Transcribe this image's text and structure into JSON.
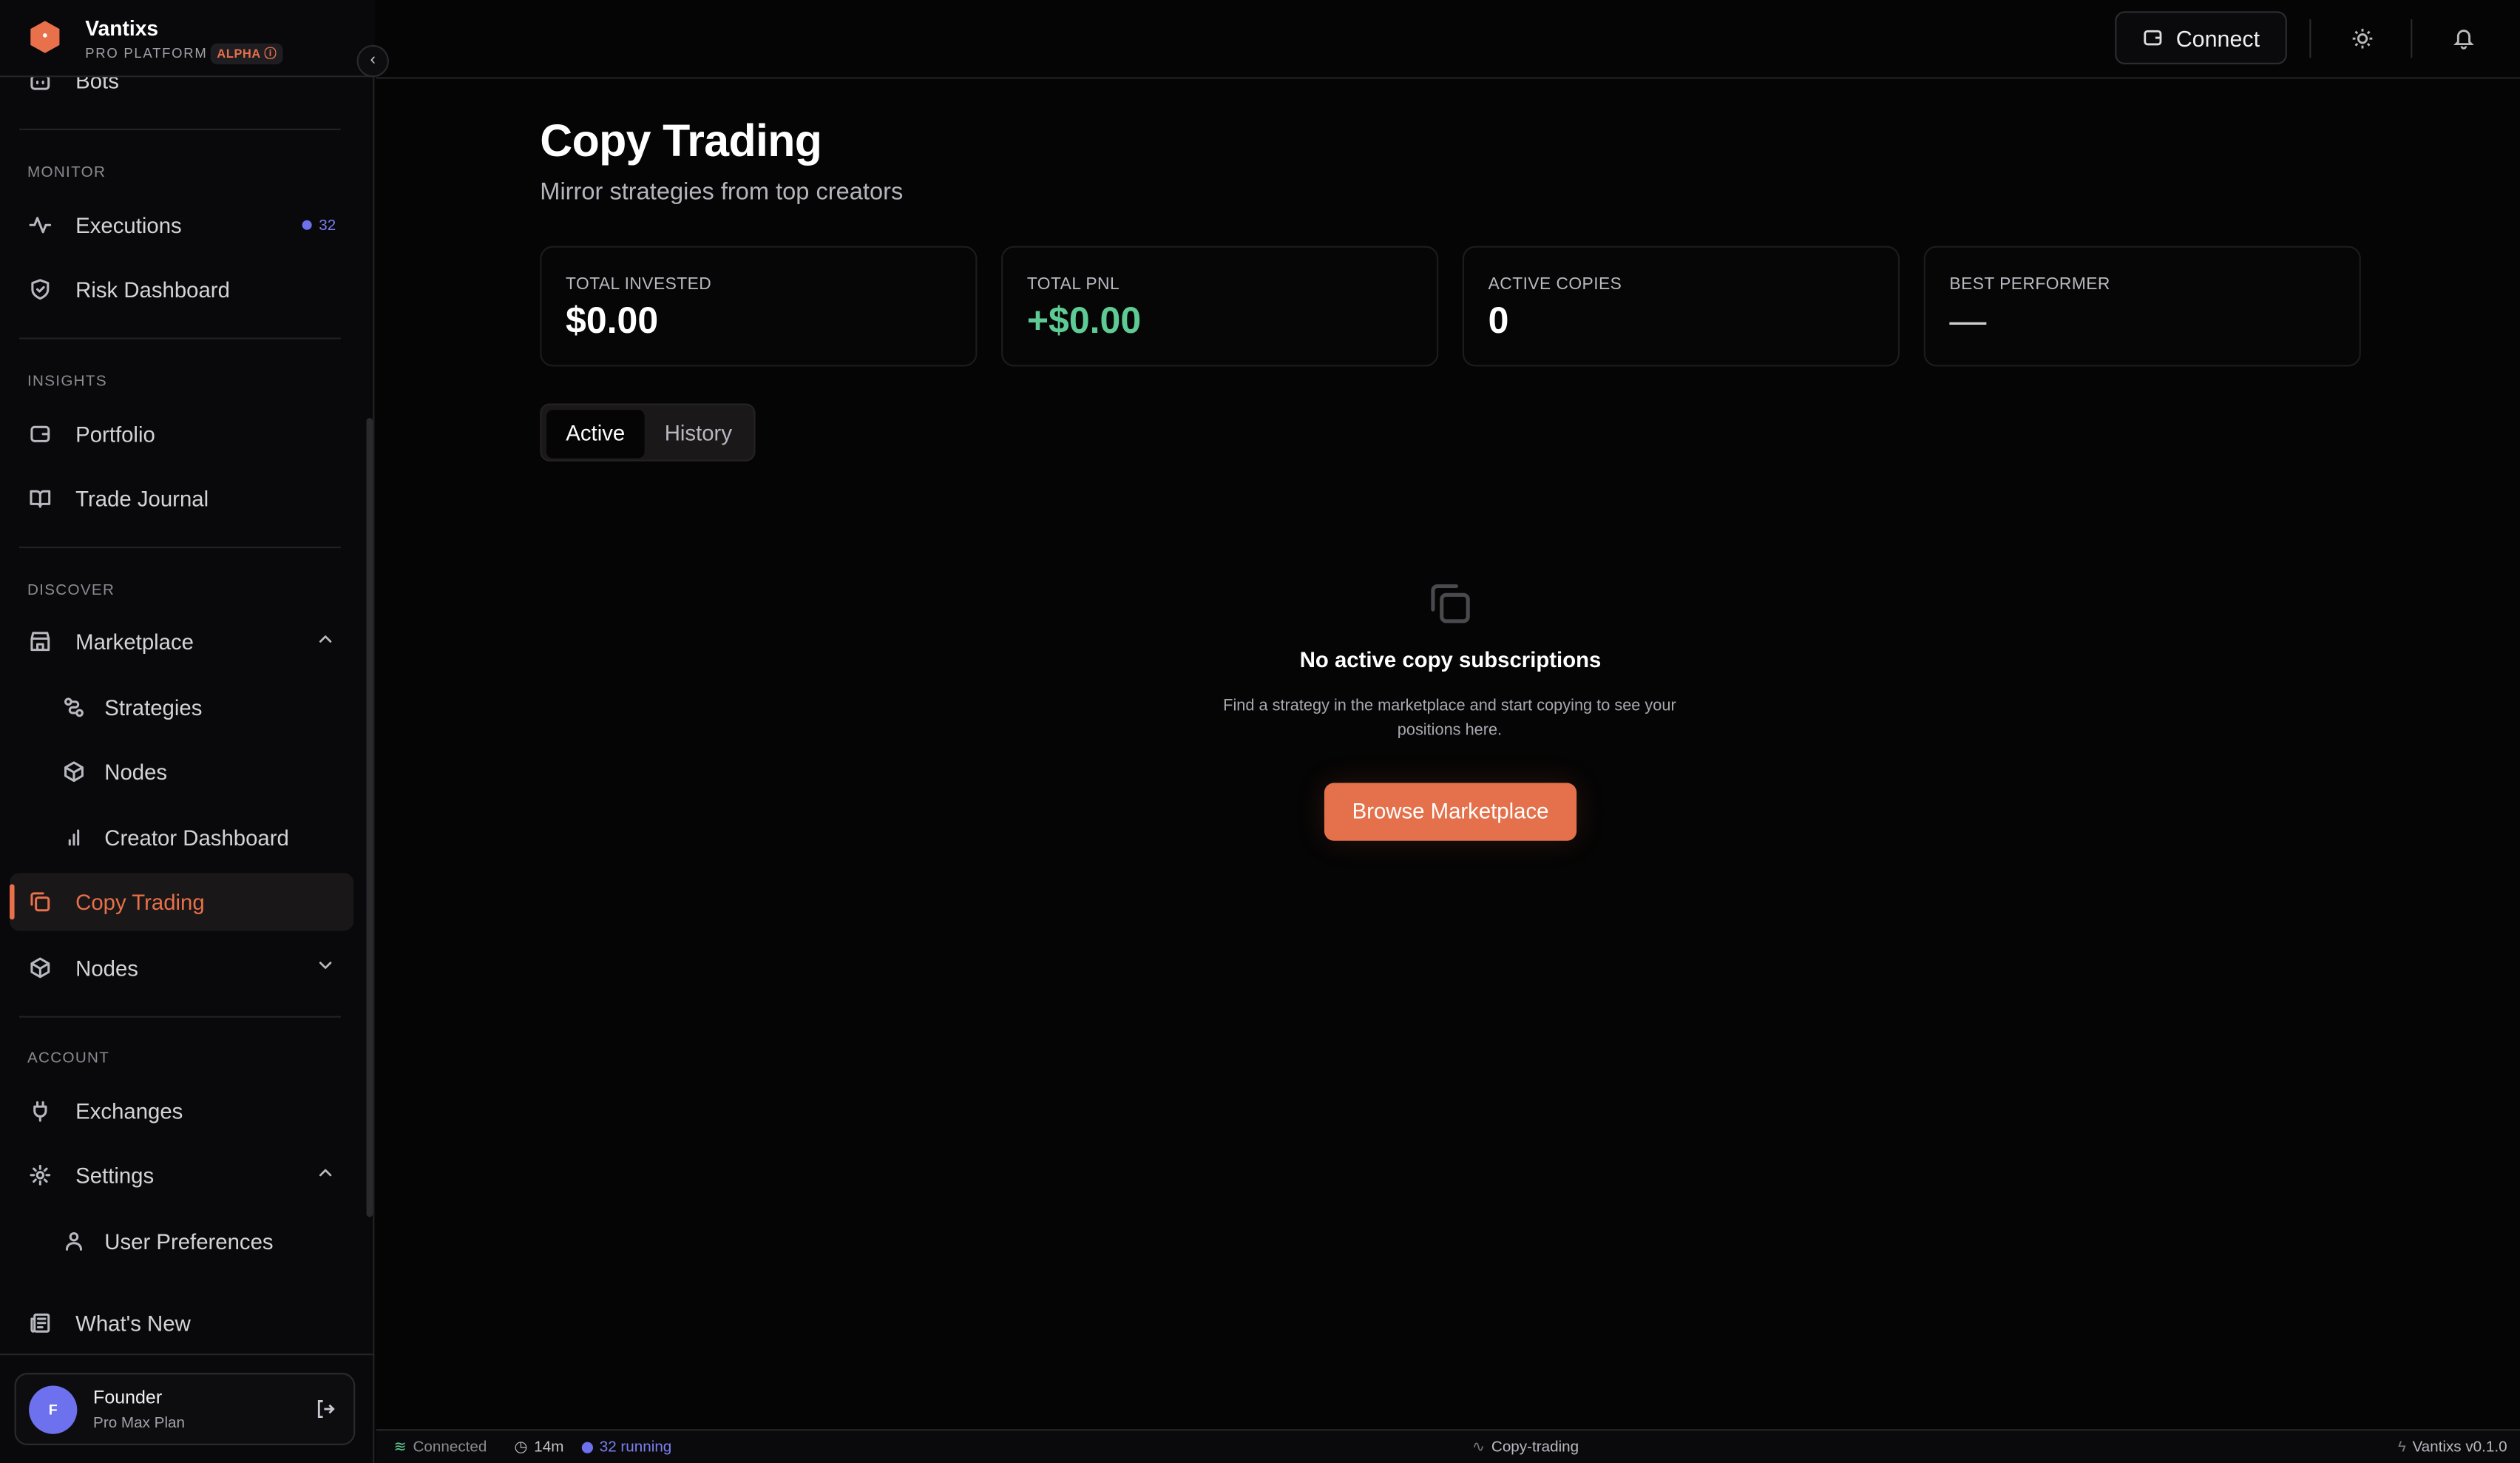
{
  "brand": {
    "name": "Vantixs",
    "subtitle": "PRO PLATFORM",
    "badge": "ALPHA",
    "accent": "#e8704a"
  },
  "sidebar": {
    "partial_top_item": "Bots",
    "sections": {
      "monitor": "MONITOR",
      "insights": "INSIGHTS",
      "discover": "DISCOVER",
      "account": "ACCOUNT"
    },
    "items": {
      "executions": {
        "label": "Executions",
        "badge": "32"
      },
      "risk": {
        "label": "Risk Dashboard"
      },
      "portfolio": {
        "label": "Portfolio"
      },
      "journal": {
        "label": "Trade Journal"
      },
      "marketplace": {
        "label": "Marketplace"
      },
      "strategies": {
        "label": "Strategies"
      },
      "nodes_sub": {
        "label": "Nodes"
      },
      "creator": {
        "label": "Creator Dashboard"
      },
      "copy": {
        "label": "Copy Trading"
      },
      "nodes": {
        "label": "Nodes"
      },
      "exchanges": {
        "label": "Exchanges"
      },
      "settings": {
        "label": "Settings"
      },
      "prefs": {
        "label": "User Preferences"
      },
      "whatsnew": {
        "label": "What's New"
      }
    },
    "user": {
      "initial": "F",
      "name": "Founder",
      "plan": "Pro Max Plan"
    }
  },
  "topbar": {
    "connect_label": "Connect"
  },
  "page": {
    "title": "Copy Trading",
    "subtitle": "Mirror strategies from top creators",
    "stats": [
      {
        "label": "TOTAL INVESTED",
        "value": "$0.00"
      },
      {
        "label": "TOTAL PNL",
        "value": "+$0.00",
        "color": "#5ecb94"
      },
      {
        "label": "ACTIVE COPIES",
        "value": "0"
      },
      {
        "label": "BEST PERFORMER",
        "value": "—"
      }
    ],
    "tabs": [
      "Active",
      "History"
    ],
    "active_tab": "Active",
    "empty": {
      "heading": "No active copy subscriptions",
      "text": "Find a strategy in the marketplace and start copying to see your positions here.",
      "button": "Browse Marketplace"
    }
  },
  "status": {
    "connection": "Connected",
    "uptime": "14m",
    "running": "32 running",
    "route": "Copy-trading",
    "version": "Vantixs v0.1.0"
  }
}
